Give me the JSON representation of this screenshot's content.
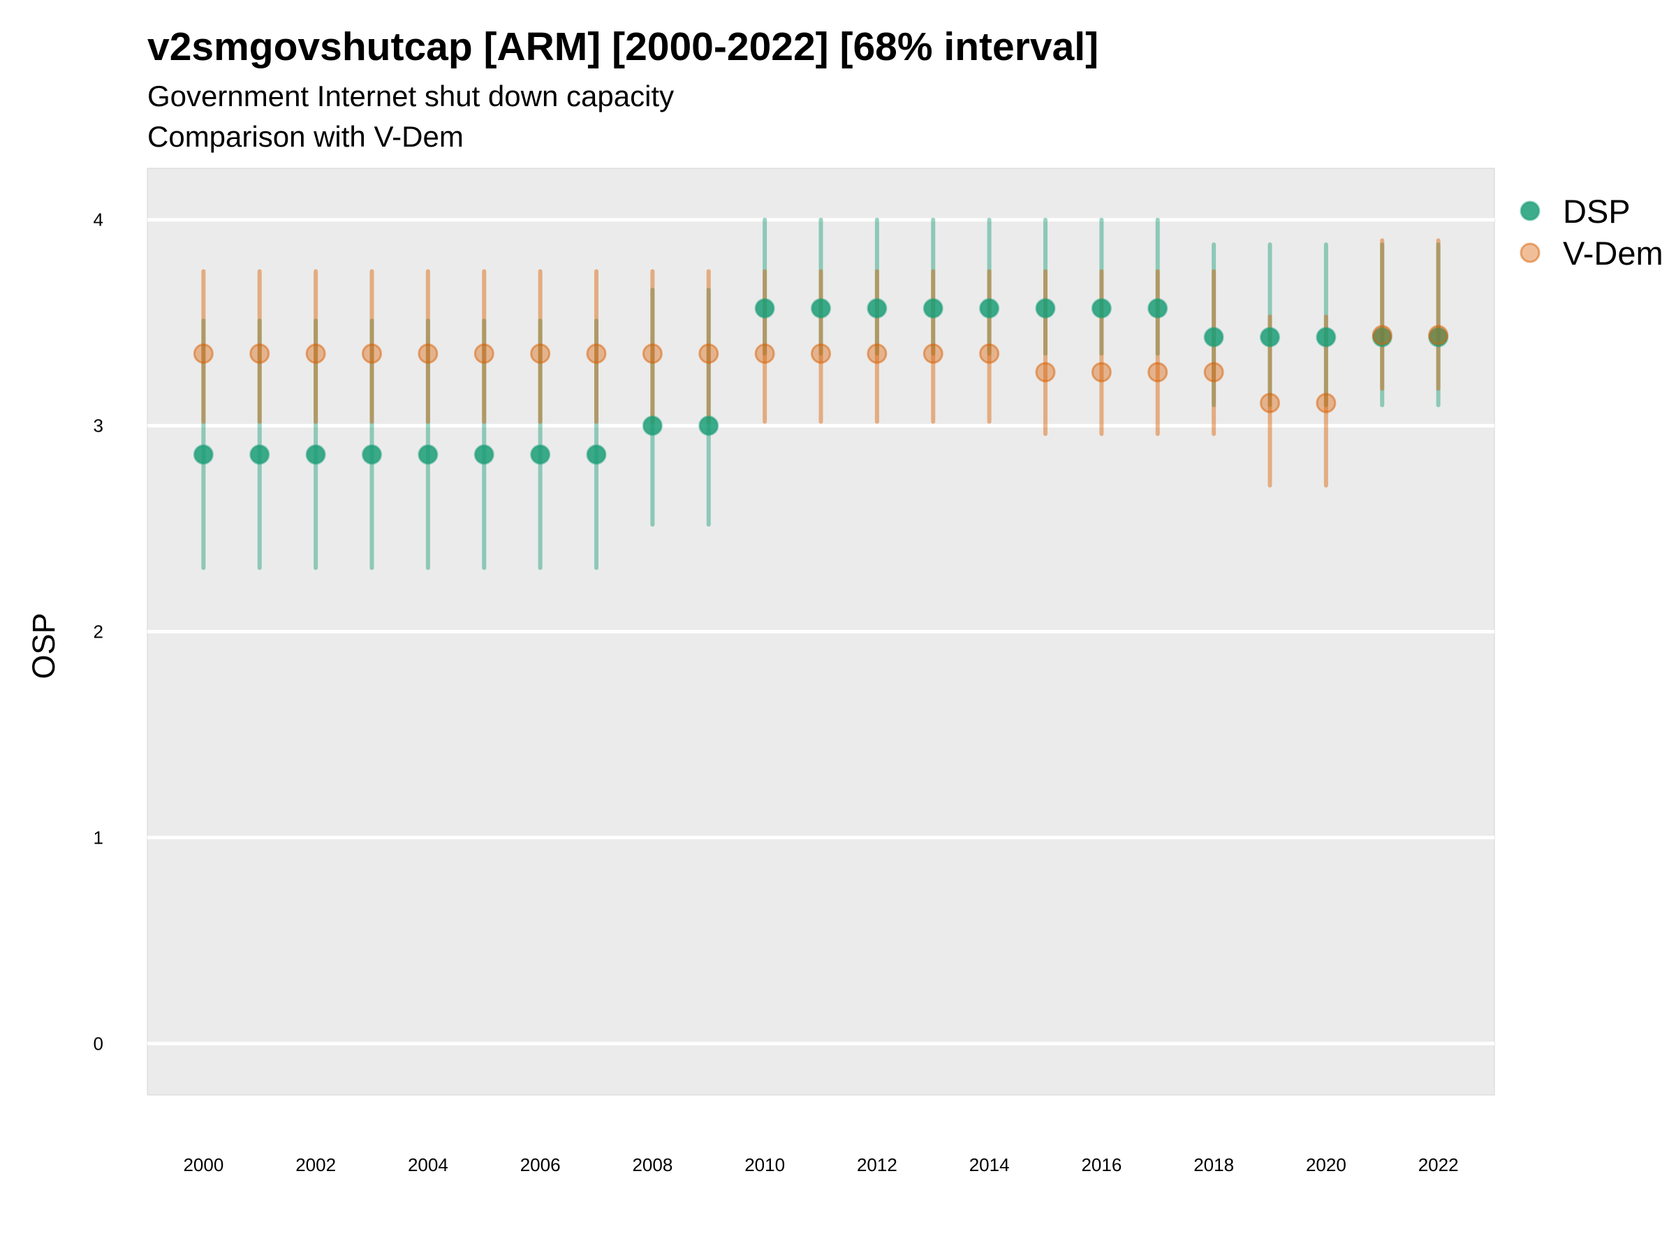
{
  "chart_data": {
    "type": "scatter",
    "title": "v2smgovshutcap [ARM] [2000-2022] [68% interval]",
    "subtitle_lines": [
      "Government Internet shut down capacity",
      "Comparison with V-Dem"
    ],
    "ylabel": "OSP",
    "xlabel": "",
    "ylim": [
      -0.25,
      4.25
    ],
    "xlim": [
      1999,
      2023
    ],
    "y_ticks": [
      "0",
      "1",
      "2",
      "3",
      "4"
    ],
    "x_ticks": [
      "2000",
      "2002",
      "2004",
      "2006",
      "2008",
      "2010",
      "2012",
      "2014",
      "2016",
      "2018",
      "2020",
      "2022"
    ],
    "grid": true,
    "legend_position": "right",
    "x": [
      2000,
      2001,
      2002,
      2003,
      2004,
      2005,
      2006,
      2007,
      2008,
      2009,
      2010,
      2011,
      2012,
      2013,
      2014,
      2015,
      2016,
      2017,
      2018,
      2019,
      2020,
      2021,
      2022
    ],
    "series": [
      {
        "name": "DSP",
        "color": "#1B9E77",
        "values": [
          2.86,
          2.86,
          2.86,
          2.86,
          2.86,
          2.86,
          2.86,
          2.86,
          3.0,
          3.0,
          3.57,
          3.57,
          3.57,
          3.57,
          3.57,
          3.57,
          3.57,
          3.57,
          3.43,
          3.43,
          3.43,
          3.43,
          3.43
        ],
        "lower": [
          2.31,
          2.31,
          2.31,
          2.31,
          2.31,
          2.31,
          2.31,
          2.31,
          2.52,
          2.52,
          3.35,
          3.35,
          3.35,
          3.35,
          3.35,
          3.35,
          3.35,
          3.35,
          3.1,
          3.1,
          3.1,
          3.1,
          3.1
        ],
        "upper": [
          3.51,
          3.51,
          3.51,
          3.51,
          3.51,
          3.51,
          3.51,
          3.51,
          3.66,
          3.66,
          4.0,
          4.0,
          4.0,
          4.0,
          4.0,
          4.0,
          4.0,
          4.0,
          3.88,
          3.88,
          3.88,
          3.88,
          3.88
        ]
      },
      {
        "name": "V-Dem",
        "color": "#D95F02",
        "values": [
          3.35,
          3.35,
          3.35,
          3.35,
          3.35,
          3.35,
          3.35,
          3.35,
          3.35,
          3.35,
          3.35,
          3.35,
          3.35,
          3.35,
          3.35,
          3.26,
          3.26,
          3.26,
          3.26,
          3.11,
          3.11,
          3.44,
          3.44
        ],
        "lower": [
          3.02,
          3.02,
          3.02,
          3.02,
          3.02,
          3.02,
          3.02,
          3.02,
          3.02,
          3.02,
          3.02,
          3.02,
          3.02,
          3.02,
          3.02,
          2.96,
          2.96,
          2.96,
          2.96,
          2.71,
          2.71,
          3.18,
          3.18
        ],
        "upper": [
          3.75,
          3.75,
          3.75,
          3.75,
          3.75,
          3.75,
          3.75,
          3.75,
          3.75,
          3.75,
          3.75,
          3.75,
          3.75,
          3.75,
          3.75,
          3.75,
          3.75,
          3.75,
          3.75,
          3.53,
          3.53,
          3.9,
          3.9
        ]
      }
    ]
  }
}
